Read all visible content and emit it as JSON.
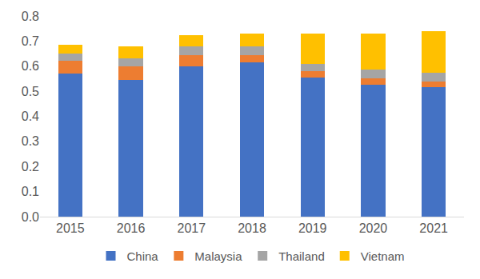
{
  "chart_data": {
    "type": "bar",
    "stacked": true,
    "categories": [
      "2015",
      "2016",
      "2017",
      "2018",
      "2019",
      "2020",
      "2021"
    ],
    "series": [
      {
        "name": "China",
        "color": "#4472C4",
        "values": [
          0.57,
          0.545,
          0.6,
          0.615,
          0.555,
          0.525,
          0.515
        ]
      },
      {
        "name": "Malaysia",
        "color": "#ED7D31",
        "values": [
          0.05,
          0.055,
          0.045,
          0.03,
          0.025,
          0.025,
          0.025
        ]
      },
      {
        "name": "Thailand",
        "color": "#A5A5A5",
        "values": [
          0.03,
          0.03,
          0.035,
          0.035,
          0.03,
          0.035,
          0.035
        ]
      },
      {
        "name": "Vietnam",
        "color": "#FFC000",
        "values": [
          0.035,
          0.05,
          0.045,
          0.05,
          0.12,
          0.145,
          0.165
        ]
      }
    ],
    "ylim": [
      0,
      0.8
    ],
    "yticks": [
      {
        "value": 0,
        "label": "0.0"
      },
      0.1,
      0.2,
      0.3,
      0.4,
      0.5,
      0.6,
      0.7,
      0.8
    ],
    "grid": false,
    "legend": "bottom"
  }
}
